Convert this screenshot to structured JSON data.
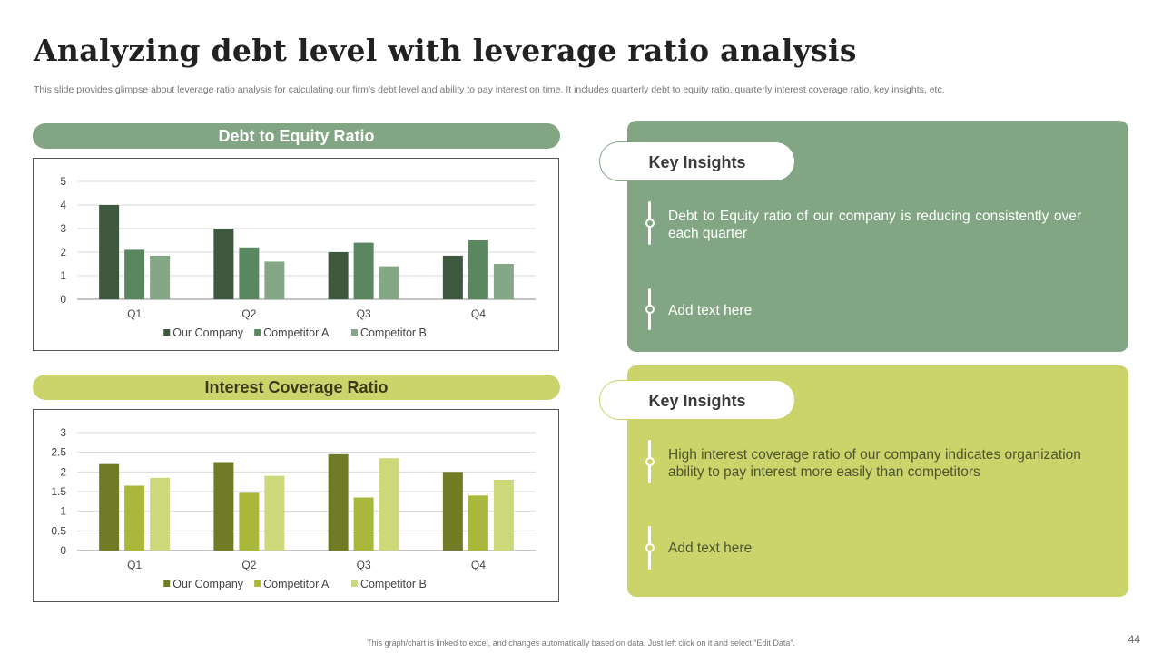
{
  "slide": {
    "title": "Analyzing debt level with leverage ratio analysis",
    "subtitle": "This slide provides glimpse about leverage ratio analysis for calculating our firm’s debt level and ability to pay interest on time. It includes quarterly debt to equity ratio, quarterly interest coverage ratio, key insights, etc.",
    "footer": "This graph/chart is linked to excel, and changes automatically based on data. Just left click on it and select “Edit Data”.",
    "page_number": "44"
  },
  "chart_data": [
    {
      "type": "bar",
      "title": "Debt to Equity Ratio",
      "categories": [
        "Q1",
        "Q2",
        "Q3",
        "Q4"
      ],
      "series": [
        {
          "name": "Our Company",
          "color": "#3e5840",
          "values": [
            4.0,
            3.0,
            2.0,
            1.85
          ]
        },
        {
          "name": "Competitor A",
          "color": "#5a8760",
          "values": [
            2.1,
            2.2,
            2.4,
            2.5
          ]
        },
        {
          "name": "Competitor B",
          "color": "#84a885",
          "values": [
            1.85,
            1.6,
            1.4,
            1.5
          ]
        }
      ],
      "ylim": [
        0,
        5
      ],
      "yticks": [
        0,
        1,
        2,
        3,
        4,
        5
      ],
      "ytick_labels": [
        "0",
        "1",
        "2",
        "3",
        "4",
        "5"
      ],
      "grid": true,
      "legend": "bottom"
    },
    {
      "type": "bar",
      "title": "Interest Coverage Ratio",
      "categories": [
        "Q1",
        "Q2",
        "Q3",
        "Q4"
      ],
      "series": [
        {
          "name": "Our Company",
          "color": "#717b26",
          "values": [
            2.2,
            2.25,
            2.45,
            2.0
          ]
        },
        {
          "name": "Competitor A",
          "color": "#a9b83a",
          "values": [
            1.65,
            1.47,
            1.35,
            1.4
          ]
        },
        {
          "name": "Competitor B",
          "color": "#cdd87a",
          "values": [
            1.85,
            1.9,
            2.35,
            1.8
          ]
        }
      ],
      "ylim": [
        0,
        3
      ],
      "yticks": [
        0,
        0.5,
        1,
        1.5,
        2,
        2.5,
        3
      ],
      "ytick_labels": [
        "0",
        "0.5",
        "1",
        "1.5",
        "2",
        "2.5",
        "3"
      ],
      "grid": true,
      "legend": "bottom"
    }
  ],
  "insights": [
    {
      "heading": "Key Insights",
      "points": [
        "Debt to Equity ratio of our company is reducing consistently over each quarter",
        "Add text here"
      ]
    },
    {
      "heading": "Key Insights",
      "points": [
        "High interest coverage ratio of our company indicates organization ability to pay interest more easily than competitors",
        "Add text here"
      ]
    }
  ]
}
